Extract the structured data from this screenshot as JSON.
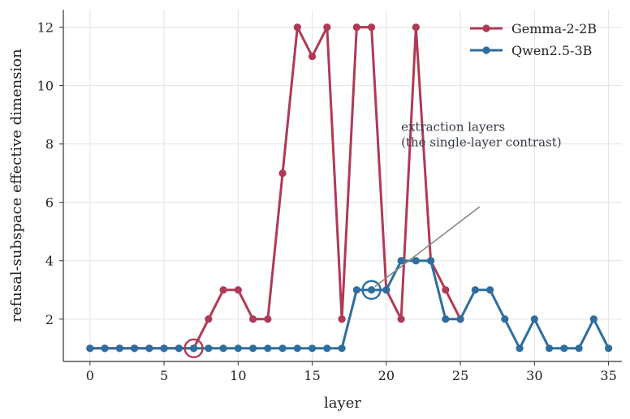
{
  "chart_data": {
    "type": "line",
    "xlabel": "layer",
    "ylabel": "refusal-subspace effective dimension",
    "xlim": [
      -1.8,
      35.9
    ],
    "ylim": [
      0.55,
      12.6
    ],
    "xticks": [
      0,
      5,
      10,
      15,
      20,
      25,
      30,
      35
    ],
    "yticks": [
      2,
      4,
      6,
      8,
      10,
      12
    ],
    "grid": true,
    "legend_position": "top-right",
    "x": [
      0,
      1,
      2,
      3,
      4,
      5,
      6,
      7,
      8,
      9,
      10,
      11,
      12,
      13,
      14,
      15,
      16,
      17,
      18,
      19,
      20,
      21,
      22,
      23,
      24,
      25,
      26,
      27,
      28,
      29,
      30,
      31,
      32,
      33,
      34,
      35
    ],
    "series": [
      {
        "name": "Gemma-2-2B",
        "color": "#b03a55",
        "x": [
          0,
          1,
          2,
          3,
          4,
          5,
          6,
          7,
          8,
          9,
          10,
          11,
          12,
          13,
          14,
          15,
          16,
          17,
          18,
          19,
          20,
          21,
          22,
          23,
          24,
          25
        ],
        "values": [
          1,
          1,
          1,
          1,
          1,
          1,
          1,
          1,
          2,
          3,
          3,
          2,
          2,
          7,
          12,
          11,
          12,
          2,
          12,
          12,
          3,
          2,
          12,
          4,
          3,
          2
        ],
        "extraction_layer": 7
      },
      {
        "name": "Qwen2.5-3B",
        "color": "#2e6e9e",
        "x": [
          0,
          1,
          2,
          3,
          4,
          5,
          6,
          7,
          8,
          9,
          10,
          11,
          12,
          13,
          14,
          15,
          16,
          17,
          18,
          19,
          20,
          21,
          22,
          23,
          24,
          25,
          26,
          27,
          28,
          29,
          30,
          31,
          32,
          33,
          34,
          35
        ],
        "values": [
          1,
          1,
          1,
          1,
          1,
          1,
          1,
          1,
          1,
          1,
          1,
          1,
          1,
          1,
          1,
          1,
          1,
          1,
          3,
          3,
          3,
          4,
          4,
          4,
          2,
          2,
          3,
          3,
          2,
          1,
          2,
          1,
          1,
          1,
          2,
          1
        ],
        "extraction_layer": 19
      }
    ],
    "annotation": {
      "lines": [
        "extraction layers",
        "(the single-layer contrast)"
      ],
      "text_at": [
        21,
        8.45
      ],
      "arrow_from": [
        26.3,
        5.85
      ],
      "arrow_to": [
        19,
        3
      ]
    }
  }
}
